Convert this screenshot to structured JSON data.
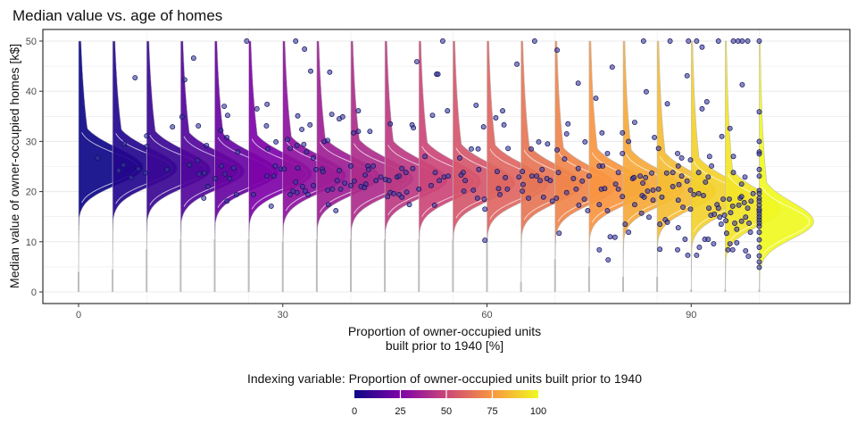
{
  "chart_data": {
    "type": "ridgeline-density-with-scatter",
    "title": "Median value vs. age of homes",
    "xlabel": [
      "Proportion of owner-occupied units",
      "built prior to 1940 [%]"
    ],
    "ylabel": "Median value of owner-occupied homes [k$]",
    "xlim": [
      -5,
      113
    ],
    "ylim": [
      -2,
      52
    ],
    "x_ticks": [
      0,
      30,
      60,
      90
    ],
    "y_ticks": [
      0,
      10,
      20,
      30,
      40,
      50
    ],
    "grid": true,
    "colormap": "plasma",
    "colors": {
      "plasma": [
        "#0d0887",
        "#7e03a8",
        "#cc4778",
        "#f89540",
        "#f0f921"
      ],
      "points_fill": "#3a3aa0",
      "points_stroke": "#10105a",
      "baseline": "#bdbdbd"
    },
    "legend": {
      "title": "Indexing variable: Proportion of owner-occupied units built prior to 1940",
      "position": "bottom",
      "range": [
        0,
        100
      ],
      "ticks": [
        "0",
        "25",
        "50",
        "75",
        "100"
      ]
    },
    "densities": [
      {
        "index": 0,
        "mode": 24.8,
        "ymin": 4,
        "peak_width": 9.5
      },
      {
        "index": 5,
        "mode": 24.6,
        "ymin": 4.5,
        "peak_width": 9.5
      },
      {
        "index": 10,
        "mode": 24.3,
        "ymin": 8.5,
        "peak_width": 9.4
      },
      {
        "index": 15,
        "mode": 24.0,
        "ymin": 10.5,
        "peak_width": 9.4
      },
      {
        "index": 20,
        "mode": 23.8,
        "ymin": 10.5,
        "peak_width": 9.3
      },
      {
        "index": 25,
        "mode": 23.5,
        "ymin": 10.5,
        "peak_width": 9.3
      },
      {
        "index": 30,
        "mode": 23.2,
        "ymin": 10,
        "peak_width": 9.3
      },
      {
        "index": 35,
        "mode": 22.9,
        "ymin": 10.5,
        "peak_width": 9.2
      },
      {
        "index": 40,
        "mode": 22.6,
        "ymin": 10.5,
        "peak_width": 9.2
      },
      {
        "index": 45,
        "mode": 22.3,
        "ymin": 10.5,
        "peak_width": 9.2
      },
      {
        "index": 50,
        "mode": 22.0,
        "ymin": 10.5,
        "peak_width": 9.1
      },
      {
        "index": 55,
        "mode": 21.7,
        "ymin": 10.5,
        "peak_width": 9.1
      },
      {
        "index": 60,
        "mode": 21.5,
        "ymin": 10,
        "peak_width": 9.0
      },
      {
        "index": 65,
        "mode": 21.3,
        "ymin": 2,
        "peak_width": 9.0
      },
      {
        "index": 70,
        "mode": 21.0,
        "ymin": 6.5,
        "peak_width": 9.0
      },
      {
        "index": 75,
        "mode": 20.8,
        "ymin": 5,
        "peak_width": 8.9
      },
      {
        "index": 80,
        "mode": 20.5,
        "ymin": 3,
        "peak_width": 8.8
      },
      {
        "index": 85,
        "mode": 20.0,
        "ymin": 3,
        "peak_width": 8.6
      },
      {
        "index": 90,
        "mode": 19.0,
        "ymin": 0.5,
        "peak_width": 8.4
      },
      {
        "index": 95,
        "mode": 16.5,
        "ymin": 0.5,
        "peak_width": 8.0
      },
      {
        "index": 100,
        "mode": 14.0,
        "ymin": 0.5,
        "peak_width": 8.0
      }
    ],
    "points": [
      [
        2.8,
        26.7
      ],
      [
        8.3,
        42.7
      ],
      [
        6.7,
        29.5
      ],
      [
        6.6,
        25.3
      ],
      [
        5.9,
        24.2
      ],
      [
        7.7,
        22.8
      ],
      [
        8.8,
        24.5
      ],
      [
        9.8,
        23.7
      ],
      [
        10,
        31.1
      ],
      [
        10,
        29
      ],
      [
        13,
        24.4
      ],
      [
        13.8,
        32.9
      ],
      [
        15.2,
        34.9
      ],
      [
        15.6,
        42.3
      ],
      [
        16.9,
        46.6
      ],
      [
        16.3,
        25.3
      ],
      [
        17.5,
        26.2
      ],
      [
        17.7,
        23.5
      ],
      [
        18.5,
        23.7
      ],
      [
        18.4,
        18.7
      ],
      [
        17.6,
        33.1
      ],
      [
        18.8,
        29.2
      ],
      [
        19,
        21
      ],
      [
        20.1,
        22.6
      ],
      [
        21,
        25.1
      ],
      [
        21.4,
        37
      ],
      [
        21.9,
        35.2
      ],
      [
        20.9,
        32.2
      ],
      [
        21.8,
        30.8
      ],
      [
        23.4,
        27.9
      ],
      [
        21.5,
        23.5
      ],
      [
        22.2,
        22.6
      ],
      [
        22.8,
        24.7
      ],
      [
        23.2,
        19.4
      ],
      [
        21.8,
        18.1
      ],
      [
        24.7,
        50
      ],
      [
        26.2,
        36.5
      ],
      [
        27.7,
        37.4
      ],
      [
        27.6,
        33.1
      ],
      [
        29,
        29.9
      ],
      [
        27.8,
        28.5
      ],
      [
        25.7,
        19.4
      ],
      [
        28.3,
        17.1
      ],
      [
        28.9,
        25.1
      ],
      [
        27.7,
        23.1
      ],
      [
        28.7,
        23.1
      ],
      [
        29.7,
        24.5
      ],
      [
        30.2,
        24.5
      ],
      [
        30.7,
        30.4
      ],
      [
        31.1,
        28.6
      ],
      [
        31.9,
        50
      ],
      [
        33.2,
        48.4
      ],
      [
        32.2,
        35.1
      ],
      [
        32.8,
        32.4
      ],
      [
        32.1,
        29.2
      ],
      [
        33.1,
        29.4
      ],
      [
        33.5,
        27.9
      ],
      [
        34,
        33.3
      ],
      [
        34.1,
        44
      ],
      [
        34.5,
        26.7
      ],
      [
        32.2,
        24.7
      ],
      [
        31.9,
        21.9
      ],
      [
        31.5,
        20.1
      ],
      [
        31.1,
        19.4
      ],
      [
        32.1,
        19.8
      ],
      [
        32.9,
        21
      ],
      [
        33.3,
        20.1
      ],
      [
        33.7,
        19.4
      ],
      [
        34.5,
        21.2
      ],
      [
        34.9,
        24.4
      ],
      [
        35.8,
        24.5
      ],
      [
        35.9,
        24
      ],
      [
        36.1,
        30
      ],
      [
        36.6,
        30.2
      ],
      [
        36.9,
        43.8
      ],
      [
        37.2,
        35.4
      ],
      [
        38.3,
        34.5
      ],
      [
        38.8,
        34.9
      ],
      [
        38.3,
        24.2
      ],
      [
        38,
        22.2
      ],
      [
        37.3,
        20.5
      ],
      [
        36.6,
        20.3
      ],
      [
        38.5,
        20.5
      ],
      [
        39.1,
        21.7
      ],
      [
        40,
        21.2
      ],
      [
        40.5,
        22.1
      ],
      [
        36.7,
        17.4
      ],
      [
        37.8,
        16.2
      ],
      [
        40,
        25.1
      ],
      [
        40.4,
        31.7
      ],
      [
        41.1,
        32
      ],
      [
        41.1,
        36.1
      ],
      [
        42.8,
        32
      ],
      [
        42.5,
        25.1
      ],
      [
        43.3,
        25.1
      ],
      [
        42.6,
        24.4
      ],
      [
        42.1,
        23.3
      ],
      [
        42.2,
        21.5
      ],
      [
        41.5,
        21
      ],
      [
        42,
        20.8
      ],
      [
        43.7,
        22.2
      ],
      [
        44.4,
        22.9
      ],
      [
        45.1,
        22.4
      ],
      [
        45.6,
        22.2
      ],
      [
        45.8,
        33.5
      ],
      [
        45.4,
        19
      ],
      [
        45.8,
        19.8
      ],
      [
        46.3,
        19.6
      ],
      [
        47.1,
        19.4
      ],
      [
        47.5,
        18.9
      ],
      [
        48.2,
        19.9
      ],
      [
        48.6,
        17.4
      ],
      [
        46.8,
        22.9
      ],
      [
        47.1,
        23.1
      ],
      [
        47.5,
        24.6
      ],
      [
        48.1,
        23.8
      ],
      [
        49.1,
        24.6
      ],
      [
        50,
        20.5
      ],
      [
        49,
        33.3
      ],
      [
        49.2,
        32.7
      ],
      [
        49.7,
        45.9
      ],
      [
        50.9,
        27
      ],
      [
        52,
        35.2
      ],
      [
        52.6,
        43.4
      ],
      [
        52.4,
        23.8
      ],
      [
        51.8,
        21.2
      ],
      [
        52.3,
        17.3
      ],
      [
        53.5,
        50
      ],
      [
        52.8,
        43.4
      ],
      [
        54.2,
        36.1
      ],
      [
        53,
        22.2
      ],
      [
        53.7,
        22.9
      ],
      [
        54.3,
        23.1
      ],
      [
        56,
        26.7
      ],
      [
        56.5,
        23.8
      ],
      [
        56.8,
        22.2
      ],
      [
        56.2,
        23.3
      ],
      [
        56.6,
        20.1
      ],
      [
        58,
        20.3
      ],
      [
        58.6,
        18.7
      ],
      [
        59.6,
        18.5
      ],
      [
        59.7,
        16.5
      ],
      [
        59.7,
        10.3
      ],
      [
        58.4,
        37.2
      ],
      [
        59.5,
        32.9
      ],
      [
        58.7,
        28.5
      ],
      [
        57.7,
        28.5
      ],
      [
        58.8,
        24.4
      ],
      [
        61.3,
        34.7
      ],
      [
        62.3,
        36.1
      ],
      [
        62.5,
        33.3
      ],
      [
        63.1,
        28.6
      ],
      [
        61.5,
        24
      ],
      [
        62.7,
        22.8
      ],
      [
        63,
        20.5
      ],
      [
        61.7,
        20.6
      ],
      [
        61.9,
        19.4
      ],
      [
        64.4,
        45.4
      ],
      [
        64.7,
        22.9
      ],
      [
        65.2,
        24
      ],
      [
        65.3,
        21.4
      ],
      [
        65.2,
        20.1
      ],
      [
        66.1,
        18.7
      ],
      [
        66.5,
        28.5
      ],
      [
        67.6,
        29.9
      ],
      [
        68.9,
        29.5
      ],
      [
        67,
        50
      ],
      [
        66.6,
        23.1
      ],
      [
        67.3,
        23.1
      ],
      [
        67.8,
        22.2
      ],
      [
        68.1,
        24.4
      ],
      [
        68.8,
        22.6
      ],
      [
        69.3,
        22.2
      ],
      [
        68.3,
        18.9
      ],
      [
        69.6,
        18.1
      ],
      [
        70.2,
        18.7
      ],
      [
        70.6,
        11.7
      ],
      [
        70.3,
        48.2
      ],
      [
        70.3,
        28.3
      ],
      [
        71.7,
        31.5
      ],
      [
        71.9,
        33.5
      ],
      [
        71.4,
        26.5
      ],
      [
        70.5,
        23.8
      ],
      [
        71.7,
        19.8
      ],
      [
        72.7,
        22.6
      ],
      [
        73.1,
        20.5
      ],
      [
        73.4,
        24.6
      ],
      [
        74,
        22.1
      ],
      [
        73.5,
        17.3
      ],
      [
        74.3,
        18.5
      ],
      [
        73.4,
        41.6
      ],
      [
        74.4,
        29.9
      ],
      [
        75,
        23.1
      ],
      [
        74.8,
        16.2
      ],
      [
        76,
        38.6
      ],
      [
        76.9,
        31.7
      ],
      [
        76.5,
        25.1
      ],
      [
        77,
        25.1
      ],
      [
        76.8,
        20.5
      ],
      [
        77.3,
        20.6
      ],
      [
        76.5,
        17.4
      ],
      [
        77.7,
        16.2
      ],
      [
        77.7,
        27.6
      ],
      [
        78.1,
        11
      ],
      [
        78.8,
        10.9
      ],
      [
        76.5,
        8.4
      ],
      [
        77.8,
        6.4
      ],
      [
        78.4,
        44.8
      ],
      [
        79.3,
        23.8
      ],
      [
        79.3,
        20.5
      ],
      [
        78.9,
        21.5
      ],
      [
        79.9,
        19
      ],
      [
        79.9,
        31.7
      ],
      [
        79.9,
        27.6
      ],
      [
        80.8,
        30
      ],
      [
        81.7,
        33.8
      ],
      [
        81.4,
        22.6
      ],
      [
        81.6,
        22.8
      ],
      [
        82.5,
        23.1
      ],
      [
        82.9,
        21.7
      ],
      [
        83.3,
        22.8
      ],
      [
        84.2,
        23.7
      ],
      [
        82.8,
        19.2
      ],
      [
        83.1,
        18.9
      ],
      [
        83.6,
        20.1
      ],
      [
        84.4,
        20.3
      ],
      [
        84.4,
        18.3
      ],
      [
        85.2,
        20.5
      ],
      [
        85.7,
        18.9
      ],
      [
        81.7,
        17.4
      ],
      [
        82.7,
        15.7
      ],
      [
        83.8,
        14.9
      ],
      [
        80.3,
        13.5
      ],
      [
        80.8,
        11.9
      ],
      [
        83,
        50
      ],
      [
        83.4,
        39.9
      ],
      [
        84.6,
        30.8
      ],
      [
        85.2,
        28.6
      ],
      [
        86.5,
        37.5
      ],
      [
        86.9,
        50
      ],
      [
        86.4,
        23.7
      ],
      [
        87.3,
        23.8
      ],
      [
        87.3,
        21
      ],
      [
        88.1,
        25.1
      ],
      [
        88.6,
        23.1
      ],
      [
        88.2,
        21.4
      ],
      [
        89.4,
        22.1
      ],
      [
        88,
        27.6
      ],
      [
        88.6,
        26.7
      ],
      [
        89.9,
        26.3
      ],
      [
        89.4,
        43.1
      ],
      [
        89.6,
        50
      ],
      [
        90.8,
        50
      ],
      [
        91.6,
        48.8
      ],
      [
        91.6,
        36.5
      ],
      [
        92.3,
        37.9
      ],
      [
        91.1,
        23.8
      ],
      [
        92.1,
        21.9
      ],
      [
        92.5,
        22.9
      ],
      [
        89.9,
        20.3
      ],
      [
        90.4,
        19.4
      ],
      [
        91.1,
        19.6
      ],
      [
        91.8,
        19.2
      ],
      [
        88.1,
        18.3
      ],
      [
        88.8,
        16.9
      ],
      [
        89.9,
        16.5
      ],
      [
        86.2,
        14.4
      ],
      [
        86.5,
        13.9
      ],
      [
        85.4,
        13.5
      ],
      [
        88.1,
        12.8
      ],
      [
        89.1,
        10.5
      ],
      [
        89.5,
        7.3
      ],
      [
        88,
        8.4
      ],
      [
        85.4,
        8.5
      ],
      [
        90.8,
        7.3
      ],
      [
        91.2,
        8.9
      ],
      [
        92,
        10.5
      ],
      [
        92.5,
        10.5
      ],
      [
        93.3,
        9.6
      ],
      [
        92.7,
        27
      ],
      [
        93,
        25.1
      ],
      [
        94.5,
        31
      ],
      [
        95.7,
        32.6
      ],
      [
        96.2,
        27
      ],
      [
        96.2,
        23.8
      ],
      [
        97.5,
        41.3
      ],
      [
        97.9,
        22.9
      ],
      [
        97.4,
        21.5
      ],
      [
        94,
        50
      ],
      [
        96.2,
        50
      ],
      [
        96.9,
        50
      ],
      [
        97.5,
        50
      ],
      [
        98.3,
        50
      ],
      [
        92.6,
        16.7
      ],
      [
        92.9,
        15.3
      ],
      [
        93.4,
        15.5
      ],
      [
        93.8,
        17.4
      ],
      [
        94,
        16.7
      ],
      [
        94.2,
        14.9
      ],
      [
        94.4,
        13.5
      ],
      [
        94.7,
        18.5
      ],
      [
        94.9,
        15.3
      ],
      [
        95.1,
        14.2
      ],
      [
        95.2,
        11.7
      ],
      [
        95.6,
        18.5
      ],
      [
        95.8,
        15.8
      ],
      [
        96.1,
        17.1
      ],
      [
        96.4,
        13.7
      ],
      [
        96.7,
        12.5
      ],
      [
        97,
        17.3
      ],
      [
        97.2,
        18.7
      ],
      [
        97.8,
        17.8
      ],
      [
        98,
        14.9
      ],
      [
        98.3,
        16.7
      ],
      [
        98.5,
        13.7
      ],
      [
        98.7,
        11.9
      ],
      [
        98.8,
        18.1
      ],
      [
        99.1,
        19.6
      ],
      [
        98,
        8.2
      ],
      [
        98.4,
        7.1
      ],
      [
        95.4,
        8.4
      ],
      [
        96.1,
        8.4
      ],
      [
        96.7,
        9.8
      ],
      [
        95.7,
        9.6
      ],
      [
        97.4,
        19
      ],
      [
        97.4,
        14.1
      ],
      [
        100,
        50
      ],
      [
        100,
        35.9
      ],
      [
        100,
        30
      ],
      [
        100,
        27.9
      ],
      [
        100,
        27.5
      ],
      [
        100,
        24.4
      ],
      [
        100,
        23.1
      ],
      [
        100,
        20.2
      ],
      [
        100,
        19.6
      ],
      [
        100,
        18.7
      ],
      [
        100,
        18.1
      ],
      [
        100,
        17.3
      ],
      [
        100,
        16.5
      ],
      [
        100,
        16.1
      ],
      [
        100,
        15.5
      ],
      [
        100,
        14.9
      ],
      [
        100,
        14.3
      ],
      [
        100,
        13.7
      ],
      [
        100,
        13.1
      ],
      [
        100,
        11.9
      ],
      [
        100,
        10.4
      ],
      [
        100,
        8.9
      ],
      [
        100,
        7.2
      ],
      [
        100,
        6
      ],
      [
        100,
        4.9
      ]
    ]
  }
}
